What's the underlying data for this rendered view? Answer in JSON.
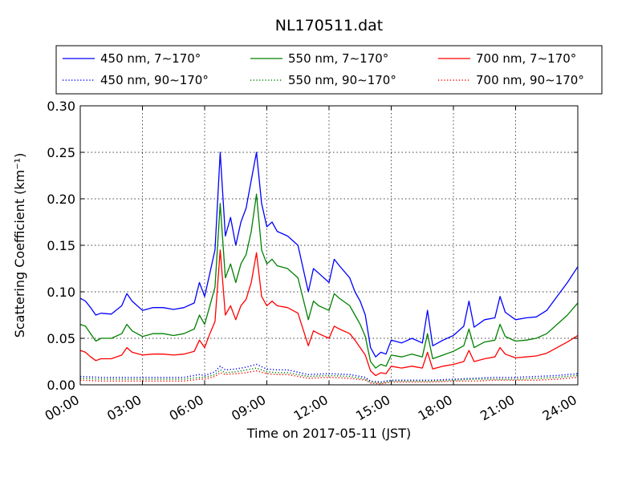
{
  "chart_data": {
    "type": "line",
    "title": "NL170511.dat",
    "xlabel": "Time on 2017-05-11 (JST)",
    "ylabel": "Scattering Coefficient (km⁻¹)",
    "xlim": [
      0,
      24
    ],
    "ylim": [
      0,
      0.3
    ],
    "grid": true,
    "legend_position": "top",
    "x_ticks": [
      {
        "value": 0,
        "label": "00:00"
      },
      {
        "value": 3,
        "label": "03:00"
      },
      {
        "value": 6,
        "label": "06:00"
      },
      {
        "value": 9,
        "label": "09:00"
      },
      {
        "value": 12,
        "label": "12:00"
      },
      {
        "value": 15,
        "label": "15:00"
      },
      {
        "value": 18,
        "label": "18:00"
      },
      {
        "value": 21,
        "label": "21:00"
      },
      {
        "value": 24,
        "label": "24:00"
      }
    ],
    "y_ticks": [
      {
        "value": 0.0,
        "label": "0.00"
      },
      {
        "value": 0.05,
        "label": "0.05"
      },
      {
        "value": 0.1,
        "label": "0.10"
      },
      {
        "value": 0.15,
        "label": "0.15"
      },
      {
        "value": 0.2,
        "label": "0.20"
      },
      {
        "value": 0.25,
        "label": "0.25"
      },
      {
        "value": 0.3,
        "label": "0.30"
      }
    ],
    "series": [
      {
        "name": "450 nm, 7∼170°",
        "color": "#0000ff",
        "style": "solid",
        "x": [
          0,
          0.25,
          0.5,
          0.75,
          1,
          1.5,
          2,
          2.25,
          2.5,
          3,
          3.5,
          4,
          4.5,
          5,
          5.5,
          5.75,
          6,
          6.25,
          6.5,
          6.75,
          7,
          7.25,
          7.5,
          7.75,
          8,
          8.25,
          8.5,
          8.75,
          9,
          9.25,
          9.5,
          10,
          10.5,
          11,
          11.25,
          11.5,
          12,
          12.25,
          12.5,
          13,
          13.25,
          13.5,
          13.75,
          14,
          14.25,
          14.5,
          14.75,
          15,
          15.5,
          16,
          16.5,
          16.75,
          17,
          17.5,
          18,
          18.5,
          18.75,
          19,
          19.5,
          20,
          20.25,
          20.5,
          21,
          21.5,
          22,
          22.5,
          23,
          23.5,
          24
        ],
        "values": [
          0.093,
          0.09,
          0.083,
          0.075,
          0.077,
          0.076,
          0.085,
          0.098,
          0.09,
          0.08,
          0.083,
          0.083,
          0.081,
          0.083,
          0.088,
          0.11,
          0.095,
          0.12,
          0.145,
          0.25,
          0.16,
          0.18,
          0.15,
          0.175,
          0.19,
          0.22,
          0.25,
          0.195,
          0.17,
          0.175,
          0.165,
          0.16,
          0.15,
          0.1,
          0.125,
          0.12,
          0.11,
          0.135,
          0.128,
          0.115,
          0.1,
          0.09,
          0.075,
          0.04,
          0.03,
          0.035,
          0.033,
          0.048,
          0.045,
          0.05,
          0.045,
          0.08,
          0.042,
          0.048,
          0.053,
          0.063,
          0.09,
          0.062,
          0.07,
          0.072,
          0.095,
          0.078,
          0.07,
          0.072,
          0.073,
          0.08,
          0.095,
          0.11,
          0.127
        ]
      },
      {
        "name": "550 nm, 7∼170°",
        "color": "#008000",
        "style": "solid",
        "x": [
          0,
          0.25,
          0.5,
          0.75,
          1,
          1.5,
          2,
          2.25,
          2.5,
          3,
          3.5,
          4,
          4.5,
          5,
          5.5,
          5.75,
          6,
          6.25,
          6.5,
          6.75,
          7,
          7.25,
          7.5,
          7.75,
          8,
          8.25,
          8.5,
          8.75,
          9,
          9.25,
          9.5,
          10,
          10.5,
          11,
          11.25,
          11.5,
          12,
          12.25,
          12.5,
          13,
          13.25,
          13.5,
          13.75,
          14,
          14.25,
          14.5,
          14.75,
          15,
          15.5,
          16,
          16.5,
          16.75,
          17,
          17.5,
          18,
          18.5,
          18.75,
          19,
          19.5,
          20,
          20.25,
          20.5,
          21,
          21.5,
          22,
          22.5,
          23,
          23.5,
          24
        ],
        "values": [
          0.065,
          0.063,
          0.055,
          0.047,
          0.05,
          0.05,
          0.055,
          0.065,
          0.058,
          0.052,
          0.055,
          0.055,
          0.053,
          0.055,
          0.06,
          0.075,
          0.065,
          0.085,
          0.105,
          0.195,
          0.115,
          0.13,
          0.11,
          0.13,
          0.14,
          0.165,
          0.205,
          0.145,
          0.13,
          0.135,
          0.128,
          0.125,
          0.115,
          0.07,
          0.09,
          0.085,
          0.08,
          0.098,
          0.093,
          0.085,
          0.075,
          0.065,
          0.052,
          0.025,
          0.018,
          0.022,
          0.02,
          0.032,
          0.03,
          0.033,
          0.03,
          0.055,
          0.028,
          0.032,
          0.036,
          0.042,
          0.06,
          0.04,
          0.046,
          0.048,
          0.065,
          0.052,
          0.047,
          0.048,
          0.05,
          0.055,
          0.065,
          0.075,
          0.088
        ]
      },
      {
        "name": "700 nm, 7∼170°",
        "color": "#ff0000",
        "style": "solid",
        "x": [
          0,
          0.25,
          0.5,
          0.75,
          1,
          1.5,
          2,
          2.25,
          2.5,
          3,
          3.5,
          4,
          4.5,
          5,
          5.5,
          5.75,
          6,
          6.25,
          6.5,
          6.75,
          7,
          7.25,
          7.5,
          7.75,
          8,
          8.25,
          8.5,
          8.75,
          9,
          9.25,
          9.5,
          10,
          10.5,
          11,
          11.25,
          11.5,
          12,
          12.25,
          12.5,
          13,
          13.25,
          13.5,
          13.75,
          14,
          14.25,
          14.5,
          14.75,
          15,
          15.5,
          16,
          16.5,
          16.75,
          17,
          17.5,
          18,
          18.5,
          18.75,
          19,
          19.5,
          20,
          20.25,
          20.5,
          21,
          21.5,
          22,
          22.5,
          23,
          23.5,
          24
        ],
        "values": [
          0.037,
          0.035,
          0.03,
          0.026,
          0.028,
          0.028,
          0.032,
          0.04,
          0.035,
          0.032,
          0.033,
          0.033,
          0.032,
          0.033,
          0.036,
          0.048,
          0.04,
          0.055,
          0.068,
          0.145,
          0.075,
          0.085,
          0.07,
          0.085,
          0.092,
          0.11,
          0.142,
          0.095,
          0.085,
          0.09,
          0.085,
          0.083,
          0.077,
          0.042,
          0.058,
          0.055,
          0.05,
          0.063,
          0.06,
          0.055,
          0.048,
          0.04,
          0.032,
          0.015,
          0.01,
          0.013,
          0.012,
          0.02,
          0.018,
          0.02,
          0.018,
          0.035,
          0.017,
          0.02,
          0.022,
          0.025,
          0.037,
          0.025,
          0.028,
          0.03,
          0.04,
          0.033,
          0.029,
          0.03,
          0.031,
          0.034,
          0.04,
          0.046,
          0.053
        ]
      },
      {
        "name": "450 nm, 90∼170°",
        "color": "#0000ff",
        "style": "dotted",
        "x": [
          0,
          1,
          2,
          3,
          4,
          5,
          5.75,
          6,
          6.5,
          6.75,
          7,
          7.5,
          8,
          8.5,
          9,
          9.5,
          10,
          11,
          12,
          13,
          13.75,
          14,
          14.5,
          15,
          16,
          17,
          18,
          19,
          20,
          21,
          22,
          23,
          24
        ],
        "values": [
          0.009,
          0.008,
          0.008,
          0.008,
          0.008,
          0.008,
          0.011,
          0.01,
          0.014,
          0.02,
          0.016,
          0.017,
          0.019,
          0.022,
          0.017,
          0.016,
          0.016,
          0.011,
          0.012,
          0.011,
          0.008,
          0.004,
          0.003,
          0.005,
          0.005,
          0.005,
          0.006,
          0.007,
          0.008,
          0.008,
          0.009,
          0.01,
          0.012
        ]
      },
      {
        "name": "550 nm, 90∼170°",
        "color": "#008000",
        "style": "dotted",
        "x": [
          0,
          1,
          2,
          3,
          4,
          5,
          5.75,
          6,
          6.5,
          6.75,
          7,
          7.5,
          8,
          8.5,
          9,
          9.5,
          10,
          11,
          12,
          13,
          13.75,
          14,
          14.5,
          15,
          16,
          17,
          18,
          19,
          20,
          21,
          22,
          23,
          24
        ],
        "values": [
          0.007,
          0.006,
          0.006,
          0.006,
          0.006,
          0.006,
          0.008,
          0.008,
          0.011,
          0.016,
          0.013,
          0.014,
          0.016,
          0.018,
          0.014,
          0.013,
          0.013,
          0.009,
          0.01,
          0.009,
          0.006,
          0.003,
          0.002,
          0.004,
          0.004,
          0.004,
          0.005,
          0.006,
          0.006,
          0.006,
          0.007,
          0.008,
          0.01
        ]
      },
      {
        "name": "700 nm, 90∼170°",
        "color": "#ff0000",
        "style": "dotted",
        "x": [
          0,
          1,
          2,
          3,
          4,
          5,
          5.75,
          6,
          6.5,
          6.75,
          7,
          7.5,
          8,
          8.5,
          9,
          9.5,
          10,
          11,
          12,
          13,
          13.75,
          14,
          14.5,
          15,
          16,
          17,
          18,
          19,
          20,
          21,
          22,
          23,
          24
        ],
        "values": [
          0.005,
          0.004,
          0.004,
          0.004,
          0.004,
          0.004,
          0.006,
          0.006,
          0.009,
          0.013,
          0.011,
          0.012,
          0.013,
          0.015,
          0.012,
          0.011,
          0.011,
          0.007,
          0.008,
          0.007,
          0.005,
          0.002,
          0.001,
          0.003,
          0.003,
          0.003,
          0.004,
          0.004,
          0.005,
          0.005,
          0.005,
          0.006,
          0.008
        ]
      }
    ],
    "legend_order": [
      0,
      1,
      2,
      3,
      4,
      5
    ]
  }
}
